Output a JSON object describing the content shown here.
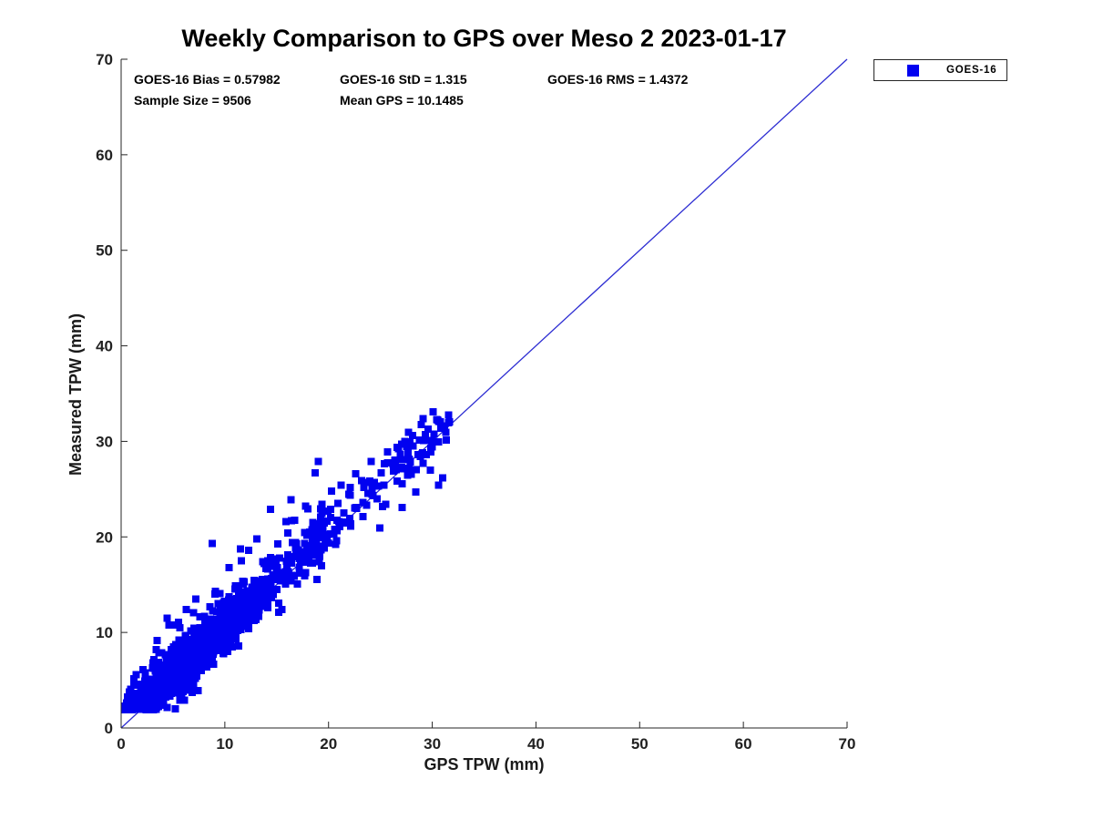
{
  "stats_text": {
    "row1": [
      "GOES-16 Bias = 0.57982",
      "GOES-16 StD = 1.315",
      "GOES-16 RMS = 1.4372"
    ],
    "row2": [
      "Sample Size = 9506",
      "Mean GPS = 10.1485"
    ]
  },
  "colors": {
    "marker_blue": "#0101f0",
    "line_blue": "#2d2dd2",
    "axis": "#262626",
    "tick_label": "#212121",
    "background": "#ffffff"
  },
  "chart_data": {
    "type": "scatter",
    "title": "Weekly Comparison to GPS over Meso 2 2023-01-17",
    "xlabel": "GPS TPW (mm)",
    "ylabel": "Measured TPW (mm)",
    "xlim": [
      0,
      70
    ],
    "ylim": [
      0,
      70
    ],
    "x_ticks": [
      0,
      10,
      20,
      30,
      40,
      50,
      60,
      70
    ],
    "y_ticks": [
      0,
      10,
      20,
      30,
      40,
      50,
      60,
      70
    ],
    "grid": false,
    "legend": {
      "position": "outside-top-right",
      "entries": [
        "GOES-16"
      ]
    },
    "reference_line": {
      "type": "identity",
      "from": [
        0,
        0
      ],
      "to": [
        70,
        70
      ],
      "color": "#2d2dd2"
    },
    "series": [
      {
        "name": "GOES-16",
        "marker": "filled-square",
        "marker_size_px": 8,
        "color": "#0101f0",
        "stats": {
          "bias": 0.57982,
          "std": 1.315,
          "rms": 1.4372,
          "sample_size": 9506,
          "mean_gps": 10.1485
        },
        "x_range_visible": [
          0.15,
          31.8
        ],
        "y_range_visible": [
          1.9,
          33.6
        ],
        "point_cloud": {
          "description": "dense cluster of 9506 points along y = x + 0.58 from (0,2) to (32,33); density highest for x 1-15, sparse beyond 25, small pile at 28-31.8",
          "seed": 20230117,
          "visible_points": 1400,
          "x_lognormal_mu": 2.18,
          "x_lognormal_sigma": 0.62,
          "low_x_cluster_fraction": 0.09,
          "slope": 1.005,
          "intercept": 0.58,
          "noise_sigma": 1.3,
          "outlier_fraction": 0.055,
          "outlier_scale": 2.7,
          "outlier_positive_share": 0.72,
          "y_floor": 1.9,
          "y_cap": 33.6,
          "tail_resample_above": 31.8,
          "tail_resample_range": [
            27.0,
            31.8
          ]
        },
        "feature_points": [
          [
            2.1,
            6.1
          ],
          [
            3.4,
            8.2
          ],
          [
            4.6,
            10.8
          ],
          [
            6.3,
            12.4
          ],
          [
            7.2,
            13.5
          ],
          [
            8.8,
            19.3
          ],
          [
            9.1,
            14.3
          ],
          [
            10.4,
            16.8
          ],
          [
            11.6,
            17.5
          ],
          [
            12.3,
            18.6
          ],
          [
            13.1,
            19.8
          ],
          [
            14.4,
            22.9
          ],
          [
            15.9,
            21.6
          ],
          [
            16.4,
            23.9
          ],
          [
            17.8,
            23.2
          ],
          [
            18.7,
            26.7
          ],
          [
            19.0,
            27.9
          ],
          [
            20.3,
            24.8
          ],
          [
            21.2,
            25.4
          ],
          [
            22.6,
            26.6
          ],
          [
            23.2,
            25.9
          ],
          [
            24.1,
            27.9
          ],
          [
            25.5,
            23.4
          ],
          [
            25.7,
            28.9
          ],
          [
            26.2,
            27.6
          ],
          [
            27.1,
            23.1
          ],
          [
            27.6,
            29.6
          ],
          [
            28.1,
            30.6
          ],
          [
            28.4,
            24.7
          ],
          [
            29.1,
            32.4
          ],
          [
            29.6,
            31.3
          ],
          [
            30.1,
            33.1
          ],
          [
            30.6,
            25.4
          ],
          [
            30.6,
            32.1
          ],
          [
            31.0,
            26.2
          ],
          [
            31.2,
            31.6
          ]
        ]
      }
    ]
  }
}
